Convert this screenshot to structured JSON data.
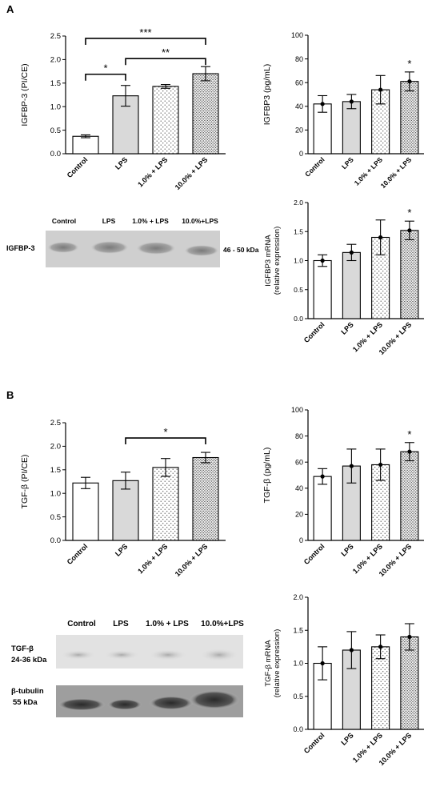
{
  "panels": {
    "A": "A",
    "B": "B"
  },
  "bar_colors": {
    "Control": "#ffffff",
    "LPS": "#d9d9d9",
    "1.0% + LPS": "dots-sparse",
    "10.0% + LPS": "dots-dense"
  },
  "chart_data": [
    {
      "id": "igfbp3_pi",
      "type": "bar",
      "panel": "A",
      "categories": [
        "Control",
        "LPS",
        "1.0% + LPS",
        "10.0% + LPS"
      ],
      "values": [
        0.37,
        1.23,
        1.43,
        1.7
      ],
      "errors": [
        0.03,
        0.22,
        0.04,
        0.15
      ],
      "ylabel": "IGFBP-3 (PI/CE)",
      "ylim": [
        0,
        2.5
      ],
      "yticks": [
        "0.0",
        "0.5",
        "1.0",
        "1.5",
        "2.0",
        "2.5"
      ],
      "points": false,
      "significance": [
        {
          "from": 0,
          "to": 1,
          "label": "*"
        },
        {
          "from": 1,
          "to": 3,
          "label": "**"
        },
        {
          "from": 0,
          "to": 3,
          "label": "***"
        }
      ],
      "stars": []
    },
    {
      "id": "igfbp3_pg",
      "type": "bar",
      "panel": "A",
      "categories": [
        "Control",
        "LPS",
        "1.0% + LPS",
        "10.0% + LPS"
      ],
      "values": [
        42,
        44,
        54,
        61
      ],
      "errors": [
        7,
        6,
        12,
        8
      ],
      "ylabel": "IGFBP3 (pg/mL)",
      "ylim": [
        0,
        100
      ],
      "yticks": [
        "0",
        "20",
        "40",
        "60",
        "80",
        "100"
      ],
      "points": true,
      "significance": [],
      "stars": [
        {
          "index": 3,
          "label": "*"
        }
      ]
    },
    {
      "id": "igfbp3_mrna",
      "type": "bar",
      "panel": "A",
      "categories": [
        "Control",
        "LPS",
        "1.0% + LPS",
        "10.0% + LPS"
      ],
      "values": [
        1.0,
        1.14,
        1.4,
        1.52
      ],
      "errors": [
        0.1,
        0.14,
        0.3,
        0.16
      ],
      "ylabel": [
        "IGFBP3 mRNA",
        "(relative expression)"
      ],
      "ylim": [
        0,
        2.0
      ],
      "yticks": [
        "0.0",
        "0.5",
        "1.0",
        "1.5",
        "2.0"
      ],
      "points": true,
      "significance": [],
      "stars": [
        {
          "index": 3,
          "label": "*"
        }
      ]
    },
    {
      "id": "tgfb_pi",
      "type": "bar",
      "panel": "B",
      "categories": [
        "Control",
        "LPS",
        "1.0% + LPS",
        "10.0% + LPS"
      ],
      "values": [
        1.22,
        1.27,
        1.55,
        1.76
      ],
      "errors": [
        0.12,
        0.18,
        0.19,
        0.11
      ],
      "ylabel": "TGF-β (PI/CE)",
      "ylim": [
        0,
        2.5
      ],
      "yticks": [
        "0.0",
        "0.5",
        "1.0",
        "1.5",
        "2.0",
        "2.5"
      ],
      "points": false,
      "significance": [
        {
          "from": 1,
          "to": 3,
          "label": "*"
        }
      ],
      "stars": []
    },
    {
      "id": "tgfb_pg",
      "type": "bar",
      "panel": "B",
      "categories": [
        "Control",
        "LPS",
        "1.0% + LPS",
        "10.0% + LPS"
      ],
      "values": [
        49,
        57,
        58,
        68
      ],
      "errors": [
        6,
        13,
        12,
        7
      ],
      "ylabel": "TGF-β (pg/mL)",
      "ylim": [
        0,
        100
      ],
      "yticks": [
        "0",
        "20",
        "40",
        "60",
        "80",
        "100"
      ],
      "points": true,
      "significance": [],
      "stars": [
        {
          "index": 3,
          "label": "*"
        }
      ]
    },
    {
      "id": "tgfb_mrna",
      "type": "bar",
      "panel": "B",
      "categories": [
        "Control",
        "LPS",
        "1.0% + LPS",
        "10.0% + LPS"
      ],
      "values": [
        1.0,
        1.2,
        1.25,
        1.4
      ],
      "errors": [
        0.25,
        0.28,
        0.18,
        0.2
      ],
      "ylabel": [
        "TGF-β mRNA",
        "(relative expression)"
      ],
      "ylim": [
        0,
        2.0
      ],
      "yticks": [
        "0.0",
        "0.5",
        "1.0",
        "1.5",
        "2.0"
      ],
      "points": true,
      "significance": [],
      "stars": []
    }
  ],
  "blots": {
    "igfbp3": {
      "lanes": [
        "Control",
        "LPS",
        "1.0% + LPS",
        "10.0%+LPS"
      ],
      "rows": [
        {
          "label": "IGFBP-3",
          "size": "46 - 50 kDa"
        }
      ]
    },
    "tgfb": {
      "lanes": [
        "Control",
        "LPS",
        "1.0% + LPS",
        "10.0%+LPS"
      ],
      "rows": [
        {
          "label": [
            "TGF-β",
            "24-36 kDa"
          ]
        },
        {
          "label": [
            "β-tubulin",
            "55 kDa"
          ]
        }
      ]
    }
  }
}
